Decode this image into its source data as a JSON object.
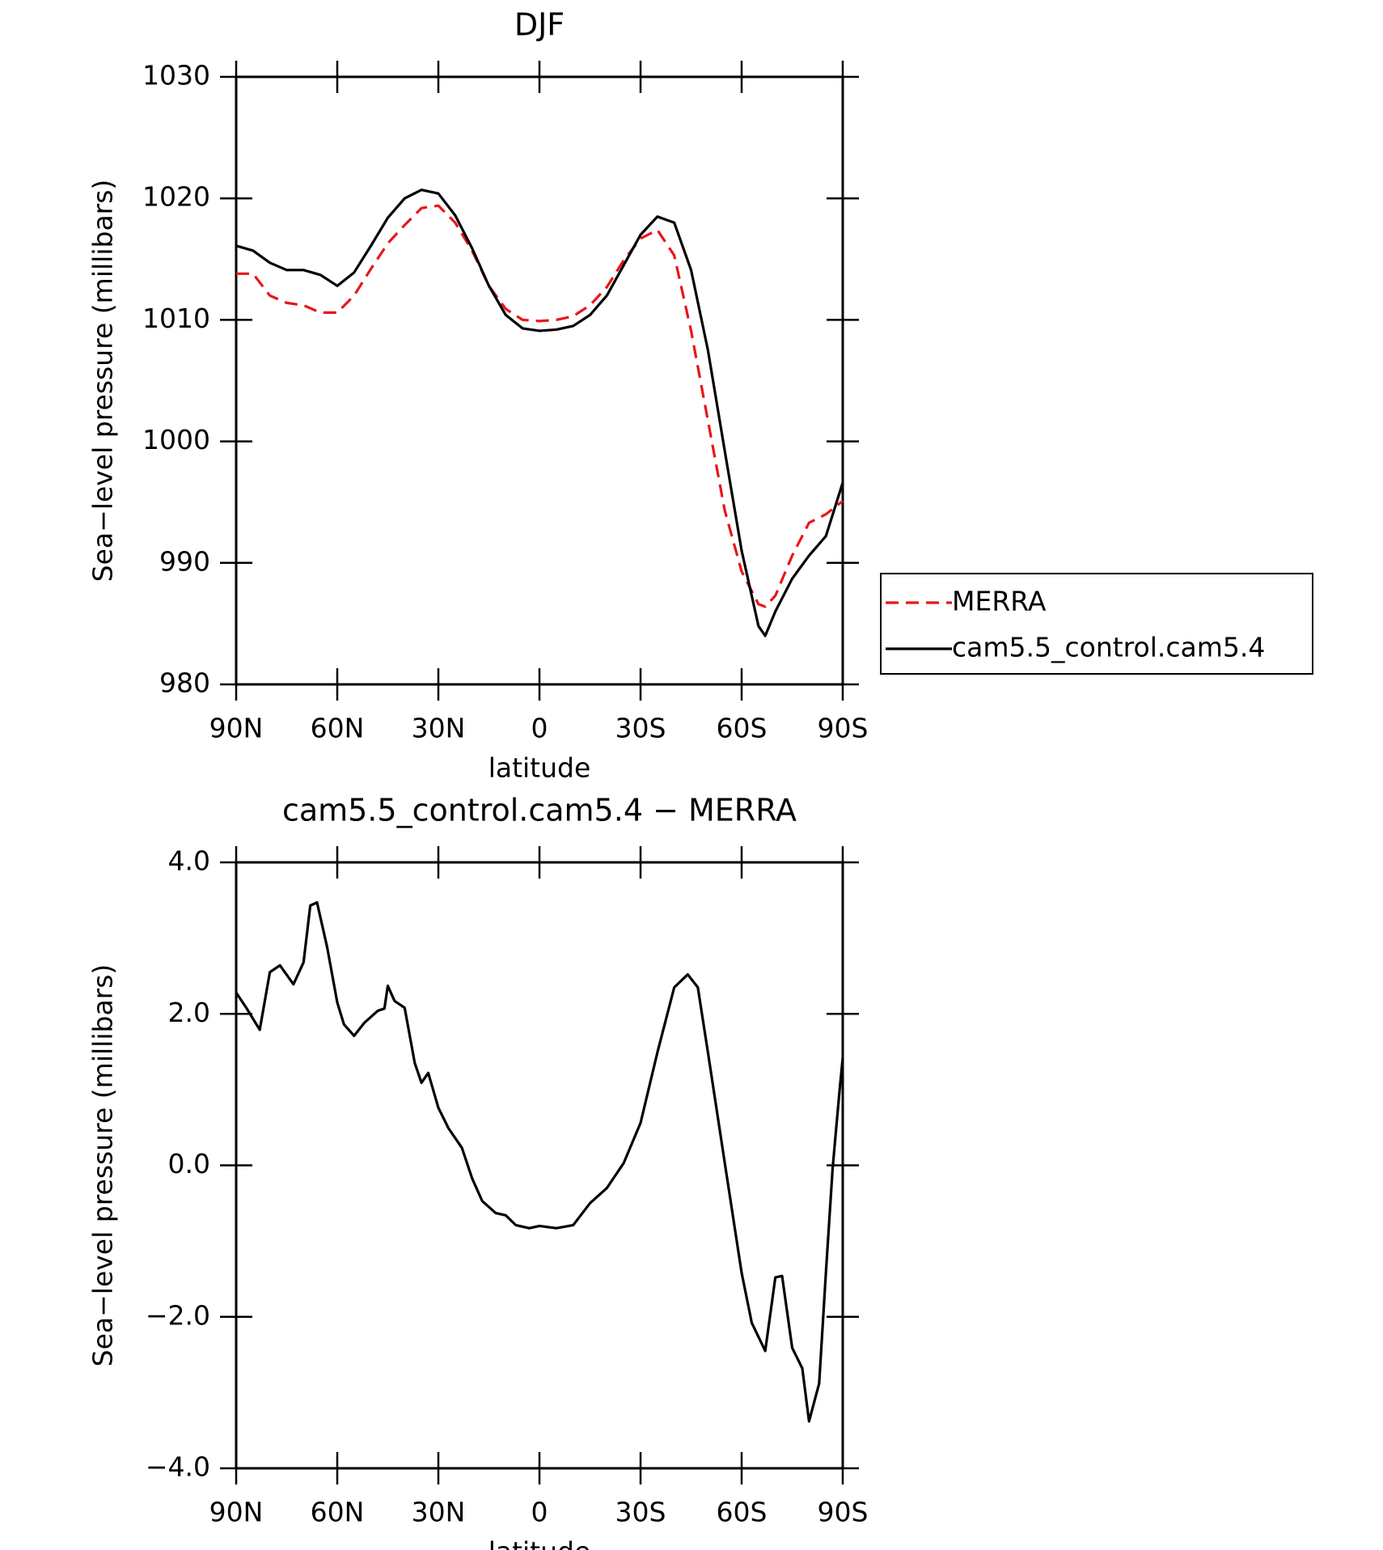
{
  "chart_data": [
    {
      "type": "line",
      "title": "DJF",
      "xlabel": "latitude",
      "ylabel": "Sea−level pressure (millibars)",
      "x": [
        90,
        85,
        80,
        75,
        70,
        65,
        60,
        55,
        50,
        45,
        40,
        35,
        30,
        25,
        20,
        15,
        10,
        5,
        0,
        -5,
        -10,
        -15,
        -20,
        -25,
        -30,
        -35,
        -40,
        -45,
        -50,
        -55,
        -60,
        -65,
        -67,
        -70,
        -75,
        -80,
        -85,
        -90
      ],
      "series": [
        {
          "name": "MERRA",
          "color": "#e8161b",
          "dash": true,
          "values": [
            1013.8,
            1013.8,
            1012.0,
            1011.4,
            1011.2,
            1010.6,
            1010.6,
            1012.0,
            1014.2,
            1016.3,
            1017.8,
            1019.2,
            1019.4,
            1018.0,
            1015.7,
            1012.8,
            1010.9,
            1010.0,
            1009.9,
            1010.0,
            1010.3,
            1011.2,
            1012.7,
            1014.9,
            1016.7,
            1017.4,
            1015.3,
            1009.1,
            1001.7,
            994.3,
            989.3,
            986.6,
            986.4,
            987.3,
            990.6,
            993.3,
            994.0,
            995.1
          ]
        },
        {
          "name": "cam5.5_control.cam5.4",
          "color": "#000000",
          "dash": false,
          "values": [
            1016.1,
            1015.7,
            1014.7,
            1014.1,
            1014.1,
            1013.7,
            1012.8,
            1013.9,
            1016.1,
            1018.4,
            1020.0,
            1020.7,
            1020.4,
            1018.6,
            1015.9,
            1012.8,
            1010.4,
            1009.3,
            1009.1,
            1009.2,
            1009.5,
            1010.4,
            1012.0,
            1014.5,
            1017.0,
            1018.5,
            1018.0,
            1014.1,
            1007.5,
            999.2,
            991.0,
            984.8,
            984.0,
            986.0,
            988.7,
            990.6,
            992.2,
            996.6
          ]
        }
      ],
      "xlim": [
        90,
        -90
      ],
      "xticks": [
        {
          "value": 90,
          "label": "90N"
        },
        {
          "value": 60,
          "label": "60N"
        },
        {
          "value": 30,
          "label": "30N"
        },
        0,
        {
          "value": -30,
          "label": "30S"
        },
        {
          "value": -60,
          "label": "60S"
        },
        {
          "value": -90,
          "label": "90S"
        }
      ],
      "ylim": [
        980,
        1030
      ],
      "yticks": [
        980,
        990,
        1000,
        1010,
        1020,
        1030
      ],
      "legend": "right"
    },
    {
      "type": "line",
      "title": "cam5.5_control.cam5.4 − MERRA",
      "xlabel": "latitude",
      "ylabel": "Sea−level pressure (millibars)",
      "x": [
        90,
        87,
        83,
        80,
        77,
        73,
        70,
        68,
        66,
        63,
        60,
        58,
        55,
        52,
        48,
        46,
        45,
        43,
        40,
        37,
        35,
        33,
        30,
        27,
        23,
        20,
        17,
        13,
        10,
        7,
        3,
        0,
        -5,
        -10,
        -15,
        -20,
        -25,
        -30,
        -35,
        -40,
        -44,
        -47,
        -50,
        -55,
        -60,
        -63,
        -67,
        -70,
        -72,
        -75,
        -78,
        -80,
        -83,
        -85,
        -87,
        -89,
        -90
      ],
      "series": [
        {
          "color": "#000000",
          "dash": false,
          "values": [
            2.28,
            2.08,
            1.79,
            2.55,
            2.64,
            2.39,
            2.68,
            3.43,
            3.47,
            2.88,
            2.15,
            1.86,
            1.71,
            1.88,
            2.04,
            2.07,
            2.37,
            2.17,
            2.08,
            1.35,
            1.09,
            1.22,
            0.76,
            0.49,
            0.23,
            -0.17,
            -0.47,
            -0.63,
            -0.66,
            -0.79,
            -0.83,
            -0.8,
            -0.83,
            -0.79,
            -0.5,
            -0.3,
            0.03,
            0.56,
            1.49,
            2.35,
            2.52,
            2.35,
            1.49,
            0.03,
            -1.42,
            -2.08,
            -2.45,
            -1.48,
            -1.46,
            -2.41,
            -2.68,
            -3.38,
            -2.88,
            -1.42,
            -0.04,
            0.96,
            1.42
          ]
        }
      ],
      "xlim": [
        90,
        -90
      ],
      "xticks": [
        {
          "value": 90,
          "label": "90N"
        },
        {
          "value": 60,
          "label": "60N"
        },
        {
          "value": 30,
          "label": "30N"
        },
        0,
        {
          "value": -30,
          "label": "30S"
        },
        {
          "value": -60,
          "label": "60S"
        },
        {
          "value": -90,
          "label": "90S"
        }
      ],
      "ylim": [
        -4,
        4
      ],
      "yticks": [
        {
          "value": -4,
          "label": "−4.0"
        },
        {
          "value": -2,
          "label": "−2.0"
        },
        {
          "value": 0,
          "label": "0.0"
        },
        {
          "value": 2,
          "label": "2.0"
        },
        {
          "value": 4,
          "label": "4.0"
        }
      ]
    }
  ]
}
